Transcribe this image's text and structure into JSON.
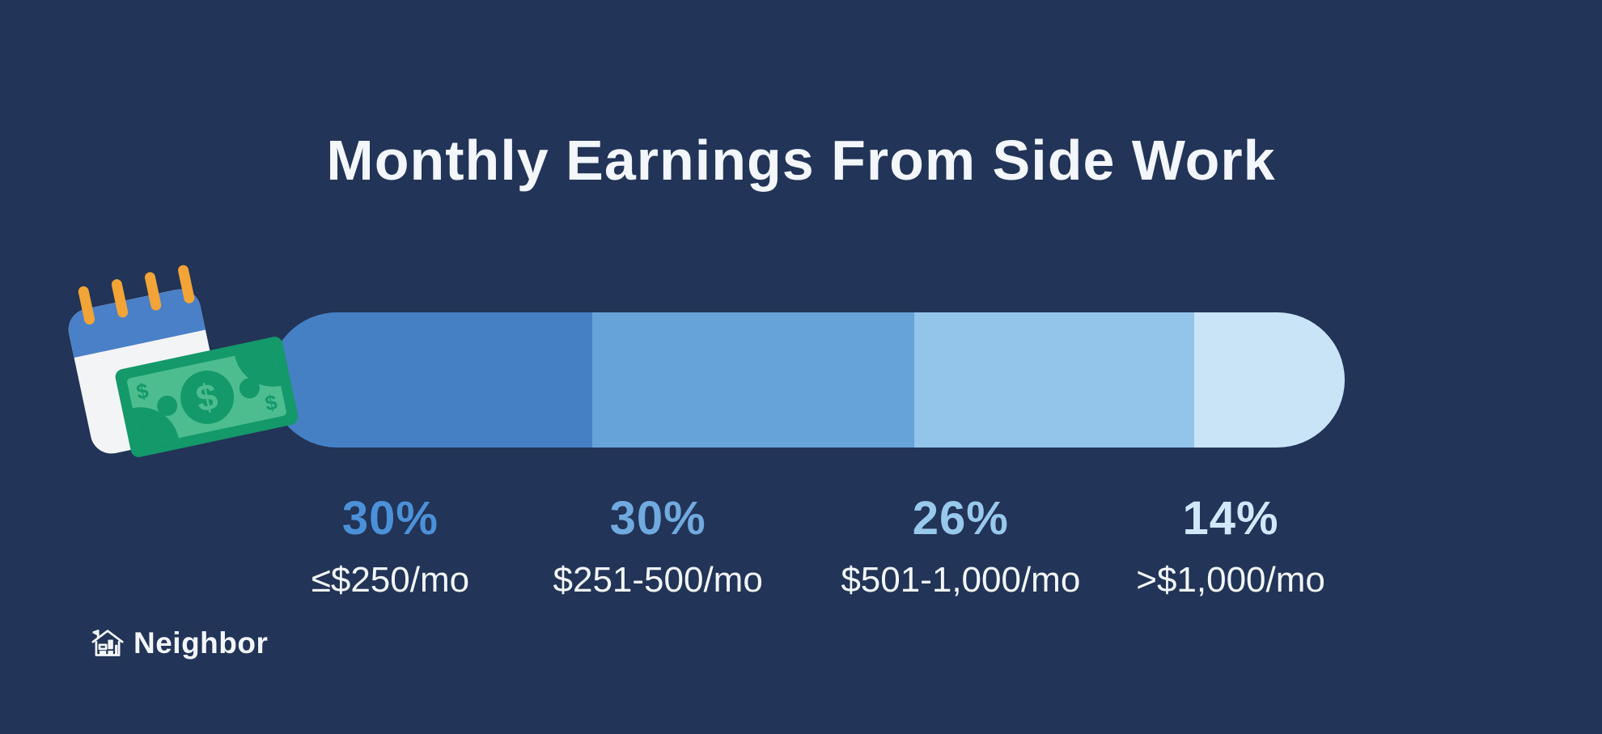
{
  "background_color": "#223457",
  "title": {
    "text": "Monthly Earnings From Side Work",
    "color": "#f3f6fa"
  },
  "chart_data": {
    "type": "bar",
    "subtype": "horizontal-stacked-percentage",
    "title": "Monthly Earnings From Side Work",
    "unit": "%",
    "categories": [
      "≤$250/mo",
      "$251-500/mo",
      "$501-1,000/mo",
      ">$1,000/mo"
    ],
    "values": [
      30,
      30,
      26,
      14
    ],
    "category_label_color": "#f3f6fa",
    "legend": false,
    "axes": false,
    "segments": [
      {
        "category": "≤$250/mo",
        "value": 30,
        "pct_label": "30%",
        "bar_color": "#4680c4",
        "pct_color": "#4b91d9"
      },
      {
        "category": "$251-500/mo",
        "value": 30,
        "pct_label": "30%",
        "bar_color": "#66a3d9",
        "pct_color": "#70aadf"
      },
      {
        "category": "$501-1,000/mo",
        "value": 26,
        "pct_label": "26%",
        "bar_color": "#93c4e9",
        "pct_color": "#98c9ed"
      },
      {
        "category": ">$1,000/mo",
        "value": 14,
        "pct_label": "14%",
        "bar_color": "#c9e4f7",
        "pct_color": "#cfe8fa"
      }
    ]
  },
  "logo": {
    "text": "Neighbor",
    "color": "#f3f6fa"
  },
  "illustration": {
    "name": "calendar-with-dollar-bill",
    "calendar": {
      "header_color": "#4a80c8",
      "body_color": "#f3f4f6",
      "pin_color": "#f2a437",
      "pin_count": 4
    },
    "bill": {
      "frame_color": "#14996a",
      "face_color": "#4dbd90",
      "currency_symbol": "$"
    }
  }
}
